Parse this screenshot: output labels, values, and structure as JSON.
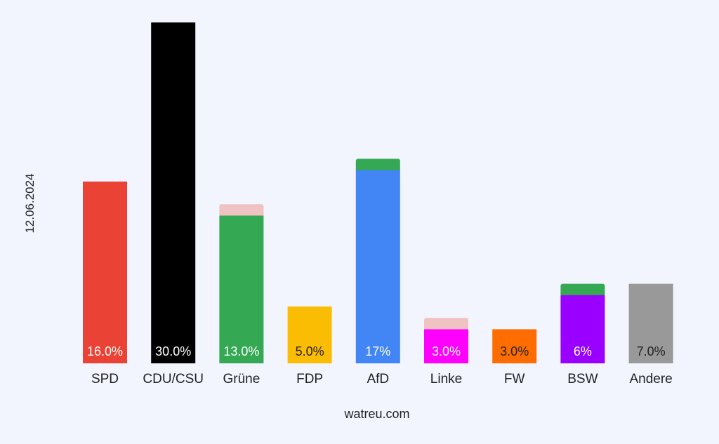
{
  "chart_data": {
    "type": "bar",
    "date_label": "12.06.2024",
    "source_label": "watreu.com",
    "ylim": [
      0,
      30
    ],
    "grid": false,
    "categories": [
      "SPD",
      "CDU/CSU",
      "Grüne",
      "FDP",
      "AfD",
      "Linke",
      "FW",
      "BSW",
      "Andere"
    ],
    "values": [
      16.0,
      30.0,
      13.0,
      5.0,
      17.0,
      3.0,
      3.0,
      6.0,
      7.0
    ],
    "value_labels": [
      "16.0%",
      "30.0%",
      "13.0%",
      "5.0%",
      "17%",
      "3.0%",
      "3.0%",
      "6%",
      "7.0%"
    ],
    "colors": [
      "#ea4335",
      "#000000",
      "#34a853",
      "#fbbc04",
      "#4285f4",
      "#ff00ff",
      "#ff6d01",
      "#9900ff",
      "#999999"
    ],
    "label_colors": [
      "#ffffff",
      "#ffffff",
      "#ffffff",
      "#222222",
      "#ffffff",
      "#ffffff",
      "#222222",
      "#ffffff",
      "#222222"
    ],
    "change_caps": [
      {
        "index": 2,
        "value": 1.0,
        "color": "#f0c2c2"
      },
      {
        "index": 4,
        "value": 1.0,
        "color": "#34a853"
      },
      {
        "index": 5,
        "value": 1.0,
        "color": "#f0c2c2"
      },
      {
        "index": 7,
        "value": 1.0,
        "color": "#34a853"
      }
    ]
  }
}
